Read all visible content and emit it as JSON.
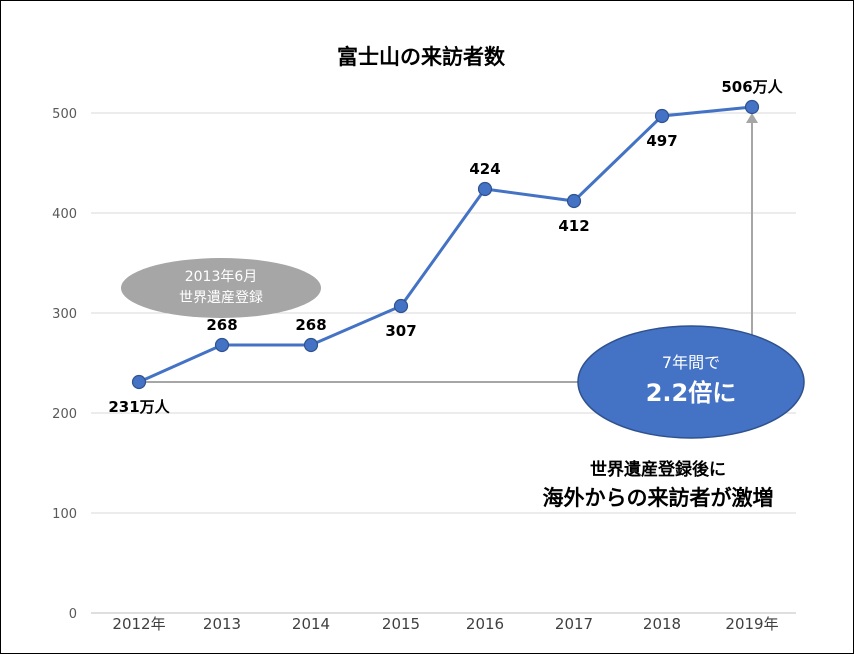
{
  "chart_data": {
    "type": "line",
    "title": "富士山の来訪者数",
    "categories": [
      "2012年",
      "2013",
      "2014",
      "2015",
      "2016",
      "2017",
      "2018",
      "2019年"
    ],
    "series": [
      {
        "values": [
          231,
          268,
          268,
          307,
          424,
          412,
          497,
          506
        ],
        "data_labels": [
          "231万人",
          "268",
          "268",
          "307",
          "424",
          "412",
          "497",
          "506万人"
        ]
      }
    ],
    "y_ticks": [
      "0",
      "100",
      "200",
      "300",
      "400",
      "500"
    ],
    "ylim": [
      0,
      550
    ],
    "grid": true,
    "colors": {
      "line": "#4472c4",
      "callout_fill": "#4472c4",
      "event_fill": "#a6a6a6",
      "reference_line": "#a6a6a6"
    },
    "annotations": {
      "event": {
        "line1": "2013年6月",
        "line2": "世界遺産登録"
      },
      "growth": {
        "line1": "7年間で",
        "line2": "2.2倍に"
      },
      "note": {
        "line1": "世界遺産登録後に",
        "line2": "海外からの来訪者が激増"
      }
    }
  }
}
